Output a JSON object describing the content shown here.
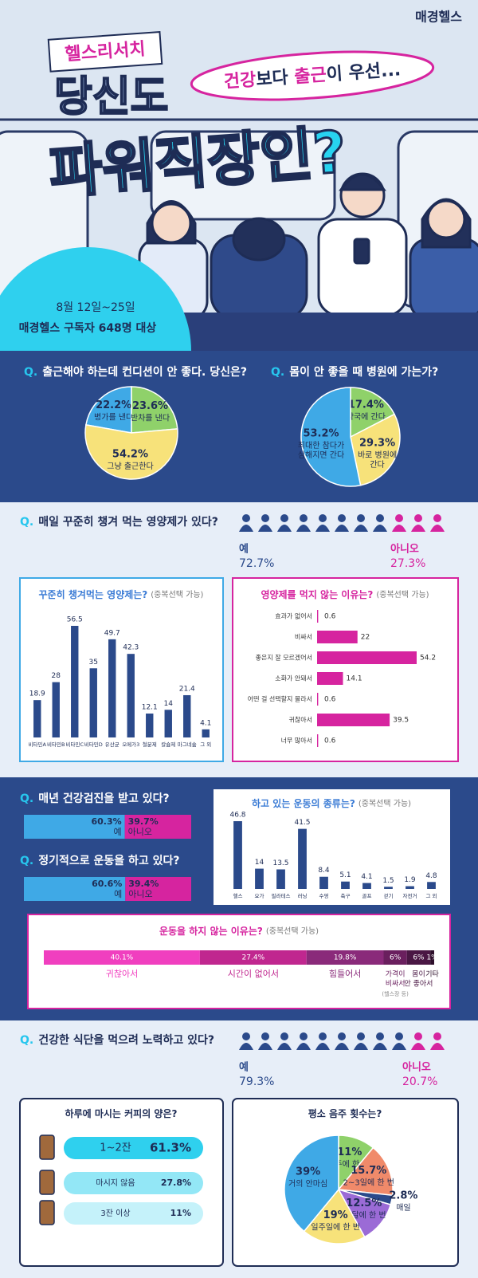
{
  "header": {
    "brand": "매경헬스",
    "tag": "헬스리서치",
    "title_line1": "당신도",
    "title_line2": "파워직장인?",
    "bubble": [
      "건강",
      "보다 ",
      "출근",
      "이 우선..."
    ],
    "period": "8월 12일~25일",
    "target": "매경헬스 구독자 648명 대상"
  },
  "question_marker": "Q.",
  "chart_data": [
    {
      "type": "pie",
      "question": "출근해야 하는데 컨디션이 안 좋다. 당신은?",
      "categories": [
        "병가를 낸다",
        "반차를 낸다",
        "그냥 출근한다"
      ],
      "values": [
        22.2,
        23.6,
        54.2
      ],
      "value_labels": [
        "22.2%",
        "23.6%",
        "54.2%"
      ],
      "colors": [
        "#3fa9e6",
        "#8fd16a",
        "#f7e27a"
      ]
    },
    {
      "type": "pie",
      "question": "몸이 안 좋을 때 병원에 가는가?",
      "categories": [
        "약국에 간다",
        [
          "바로 병원에",
          "간다"
        ],
        [
          "최대한 참다가",
          "심해지면 간다"
        ]
      ],
      "values": [
        17.4,
        29.3,
        53.2
      ],
      "value_labels": [
        "17.4%",
        "29.3%",
        "53.2%"
      ],
      "colors": [
        "#8fd16a",
        "#f7e27a",
        "#3fa9e6"
      ]
    },
    {
      "type": "icon-array",
      "question": "매일 꾸준히 챙겨 먹는 영양제가 있다?",
      "categories": [
        "예",
        "아니오"
      ],
      "values": [
        72.7,
        27.3
      ],
      "value_labels": [
        "72.7%",
        "27.3%"
      ],
      "colors": [
        "#2b4a8b",
        "#d6249f"
      ]
    },
    {
      "type": "bar",
      "title": "꾸준히 챙겨먹는 영양제는?",
      "note": "(중복선택 가능)",
      "categories": [
        "비타민A",
        "비타민B",
        "비타민C",
        "비타민D",
        "유산균",
        "오메가3",
        "철분제",
        "칼슘제",
        "마그네슘",
        "그 외"
      ],
      "values": [
        18.9,
        28,
        56.5,
        35,
        49.7,
        42.3,
        12.1,
        14,
        21.4,
        4.1
      ],
      "color": "#2b4a8b"
    },
    {
      "type": "hbar",
      "title": "영양제를 먹지 않는 이유는?",
      "note": "(중복선택 가능)",
      "categories": [
        "효과가 없어서",
        "비싸서",
        "좋은지 잘 모르겠어서",
        "소화가 안돼서",
        "어떤 걸 선택할지 몰라서",
        "귀찮아서",
        "너무 많아서"
      ],
      "values": [
        0.6,
        22,
        54.2,
        14.1,
        0.6,
        39.5,
        0.6
      ],
      "color": "#d6249f"
    },
    {
      "type": "split-bar",
      "question": "매년 건강검진을 받고 있다?",
      "categories": [
        "예",
        "아니오"
      ],
      "values": [
        60.3,
        39.7
      ],
      "value_labels": [
        "60.3%",
        "39.7%"
      ],
      "colors": [
        "#3fa9e6",
        "#d6249f"
      ]
    },
    {
      "type": "split-bar",
      "question": "정기적으로 운동을 하고 있다?",
      "categories": [
        "예",
        "아니오"
      ],
      "values": [
        60.6,
        39.4
      ],
      "value_labels": [
        "60.6%",
        "39.4%"
      ],
      "colors": [
        "#3fa9e6",
        "#d6249f"
      ]
    },
    {
      "type": "bar",
      "title": "하고 있는 운동의 종류는?",
      "note": "(중복선택 가능)",
      "categories": [
        "헬스",
        "요가",
        "필라테스",
        "러닝",
        "수영",
        "축구",
        "골프",
        "걷기",
        "자전거",
        "그 외"
      ],
      "values": [
        46.8,
        14,
        13.5,
        41.5,
        8.4,
        5.1,
        4.1,
        1.5,
        1.9,
        4.8
      ],
      "color": "#2b4a8b"
    },
    {
      "type": "stacked-bar",
      "title": "운동을 하지 않는 이유는?",
      "note": "(중복선택 가능)",
      "categories": [
        "귀찮아서",
        "시간이 없어서",
        "힘들어서",
        [
          "가격이",
          "비싸서"
        ],
        [
          "몸이",
          "안 좋아서"
        ],
        "기타"
      ],
      "values": [
        40.1,
        27.4,
        19.8,
        6,
        6,
        1
      ],
      "value_labels": [
        "40.1%",
        "27.4%",
        "19.8%",
        "6%",
        "6%",
        "1%"
      ],
      "colors": [
        "#f03fbf",
        "#c0278f",
        "#8a2a7a",
        "#6a1f5e",
        "#4a1744",
        "#2e0f2b"
      ],
      "annotation": "(헬스장 등)"
    },
    {
      "type": "icon-array",
      "question": "건강한 식단을 먹으려 노력하고 있다?",
      "categories": [
        "예",
        "아니오"
      ],
      "values": [
        79.3,
        20.7
      ],
      "value_labels": [
        "79.3%",
        "20.7%"
      ],
      "colors": [
        "#2b4a8b",
        "#d6249f"
      ]
    },
    {
      "type": "pill-list",
      "title": "하루에 마시는 커피의 양은?",
      "categories": [
        "1~2잔",
        "마시지 않음",
        "3잔 이상"
      ],
      "values": [
        61.3,
        27.8,
        11
      ],
      "value_labels": [
        "61.3%",
        "27.8%",
        "11%"
      ],
      "color": "#2fd0ee"
    },
    {
      "type": "pie",
      "title": "평소 음주 횟수는?",
      "categories": [
        "2주에 한 번",
        "2~3일에 한 번",
        "매일",
        "한 달에 한 번",
        "일주일에 한 번",
        "거의 안마심"
      ],
      "values": [
        11,
        15.7,
        2.8,
        12.5,
        19,
        39
      ],
      "value_labels": [
        "11%",
        "15.7%",
        "2.8%",
        "12.5%",
        "19%",
        "39%"
      ],
      "colors": [
        "#8fd16a",
        "#f08a6a",
        "#2b4a8b",
        "#9b6bd6",
        "#f7e27a",
        "#3fa9e6"
      ]
    }
  ]
}
